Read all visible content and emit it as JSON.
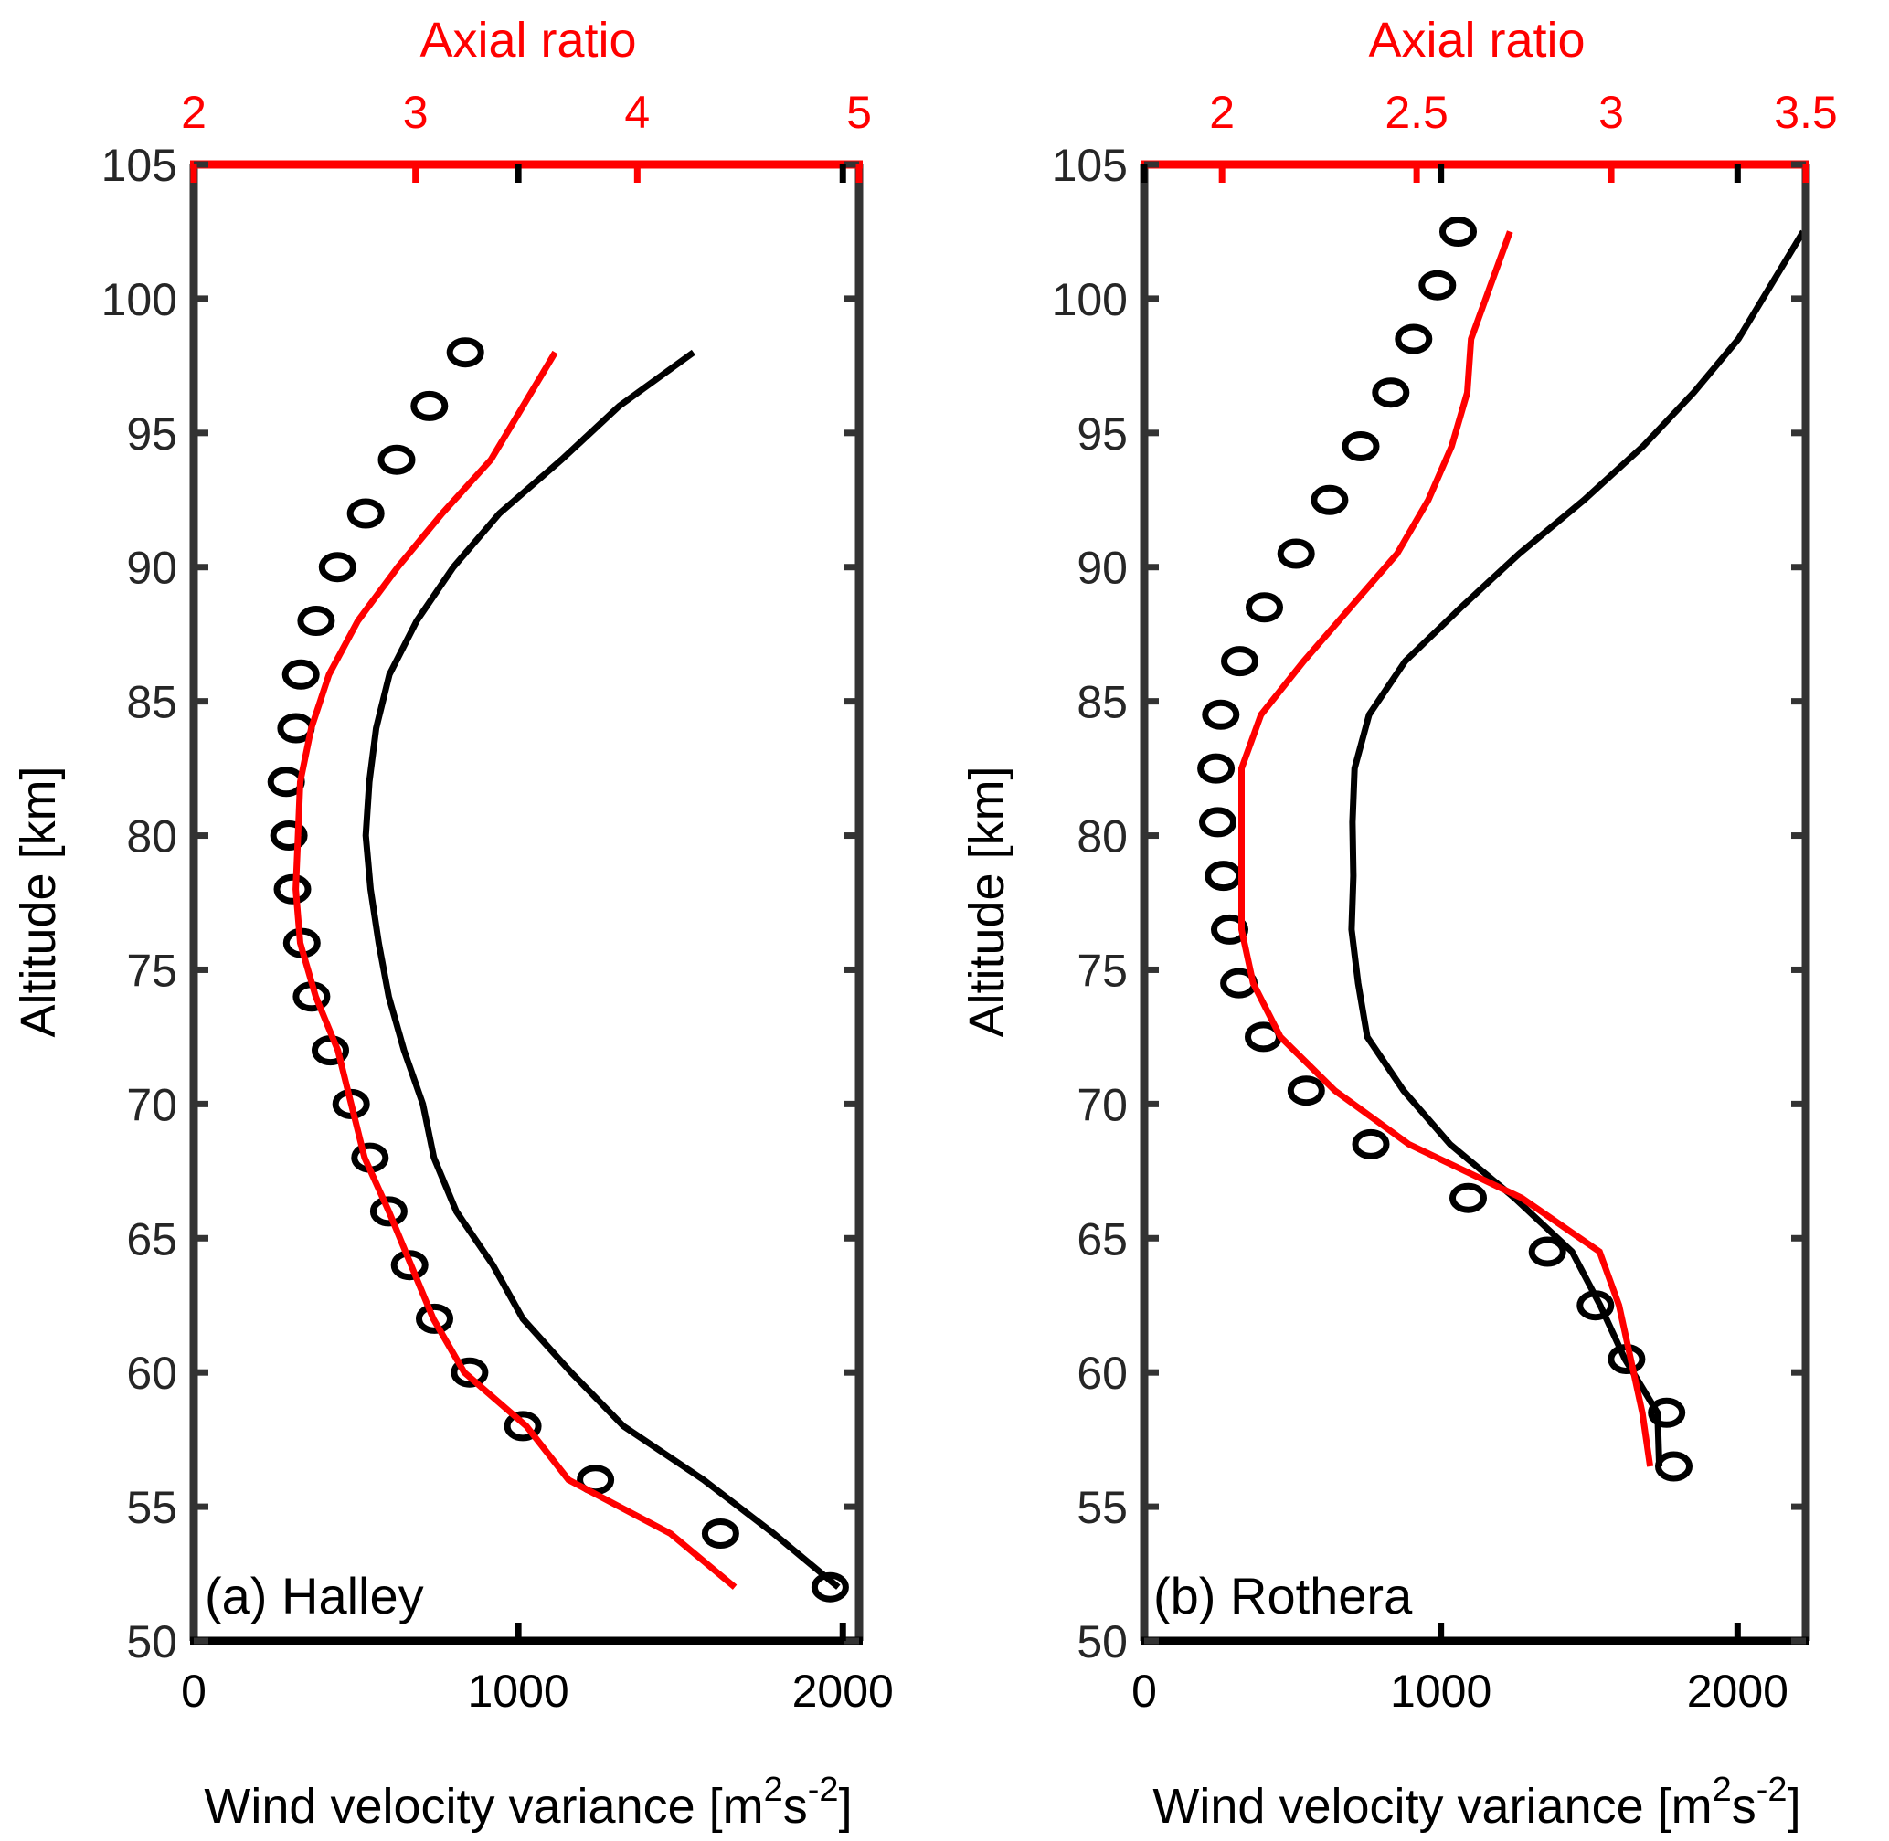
{
  "chart_data": [
    {
      "type": "line",
      "panel_label": "(a) Halley",
      "title": "",
      "xlabel": "Wind velocity variance [m",
      "xlabel_sup1": "2",
      "xlabel_mid": "s",
      "xlabel_sup2": "-2",
      "xlabel_end": "]",
      "ylabel": "Altitude [km]",
      "x2label": "Axial ratio",
      "xlim": [
        0,
        2050
      ],
      "x2lim": [
        2,
        5
      ],
      "ylim": [
        50,
        105
      ],
      "xticks": [
        0,
        1000,
        2000
      ],
      "x2ticks": [
        "2",
        "3",
        "4",
        "5"
      ],
      "x2tick_values": [
        2,
        3,
        4,
        5
      ],
      "yticks": [
        50,
        55,
        60,
        65,
        70,
        75,
        80,
        85,
        90,
        95,
        100,
        105
      ],
      "grid": false,
      "series": [
        {
          "name": "variance (circles)",
          "style": "circle",
          "color": "#000000",
          "axis": "bottom",
          "y": [
            98,
            96,
            94,
            92,
            90,
            88,
            86,
            84,
            82,
            80,
            78,
            76,
            74,
            72,
            70,
            68,
            66,
            64,
            62,
            60,
            58,
            56,
            54,
            52
          ],
          "x": [
            837,
            726,
            625,
            530,
            443,
            377,
            330,
            315,
            285,
            293,
            304,
            333,
            363,
            421,
            485,
            543,
            601,
            665,
            742,
            850,
            1014,
            1238,
            1623,
            1961
          ]
        },
        {
          "name": "variance (line)",
          "style": "line",
          "color": "#000000",
          "axis": "bottom",
          "y": [
            98,
            96,
            94,
            92,
            90,
            88,
            86,
            84,
            82,
            80,
            78,
            76,
            74,
            72,
            70,
            68,
            66,
            64,
            62,
            60,
            58,
            56,
            54,
            52
          ],
          "x": [
            1540,
            1311,
            1133,
            942,
            800,
            687,
            603,
            562,
            541,
            530,
            545,
            570,
            601,
            648,
            706,
            740,
            809,
            922,
            1014,
            1163,
            1324,
            1571,
            1787,
            1986
          ]
        },
        {
          "name": "axial ratio",
          "style": "line",
          "color": "#ff0000",
          "axis": "top",
          "y": [
            98,
            94,
            92,
            90,
            88,
            86,
            84,
            82,
            80,
            78,
            76,
            74,
            72,
            70,
            68,
            66,
            64,
            62,
            60,
            58,
            56,
            54,
            52
          ],
          "x": [
            3.63,
            3.34,
            3.12,
            2.92,
            2.74,
            2.61,
            2.53,
            2.48,
            2.47,
            2.46,
            2.48,
            2.55,
            2.65,
            2.71,
            2.77,
            2.88,
            2.98,
            3.08,
            3.22,
            3.5,
            3.69,
            4.15,
            4.44
          ]
        }
      ]
    },
    {
      "type": "line",
      "panel_label": "(b) Rothera",
      "title": "",
      "xlabel": "Wind velocity variance [m",
      "xlabel_sup1": "2",
      "xlabel_mid": "s",
      "xlabel_sup2": "-2",
      "xlabel_end": "]",
      "ylabel": "Altitude [km]",
      "x2label": "Axial ratio",
      "xlim": [
        0,
        2230
      ],
      "x2lim": [
        1.8,
        3.5
      ],
      "ylim": [
        50,
        105
      ],
      "xticks": [
        0,
        1000,
        2000
      ],
      "x2ticks": [
        "2",
        "2.5",
        "3",
        "3.5"
      ],
      "x2tick_values": [
        2,
        2.5,
        3,
        3.5
      ],
      "yticks": [
        50,
        55,
        60,
        65,
        70,
        75,
        80,
        85,
        90,
        95,
        100,
        105
      ],
      "grid": false,
      "series": [
        {
          "name": "variance (circles)",
          "style": "circle",
          "color": "#000000",
          "axis": "bottom",
          "y": [
            102.5,
            100.5,
            98.5,
            96.5,
            94.5,
            92.5,
            90.5,
            88.5,
            86.5,
            84.5,
            82.5,
            80.5,
            78.5,
            76.5,
            74.5,
            72.5,
            70.5,
            68.5,
            66.5,
            64.5,
            62.5,
            60.5,
            58.5,
            56.5
          ],
          "x": [
            1058,
            988,
            908,
            831,
            730,
            625,
            512,
            405,
            322,
            258,
            242,
            248,
            267,
            288,
            319,
            402,
            546,
            764,
            1092,
            1359,
            1521,
            1626,
            1761,
            1785
          ]
        },
        {
          "name": "variance (line)",
          "style": "line",
          "color": "#000000",
          "axis": "bottom",
          "y": [
            102.5,
            98.5,
            96.5,
            94.5,
            92.5,
            90.5,
            88.5,
            86.5,
            84.5,
            82.5,
            80.5,
            78.5,
            76.5,
            74.5,
            72.5,
            70.5,
            68.5,
            66.5,
            64.5,
            62.5,
            60.5,
            58.5,
            56.5
          ],
          "x": [
            2221,
            2003,
            1852,
            1681,
            1482,
            1264,
            1068,
            880,
            758,
            709,
            702,
            705,
            699,
            721,
            752,
            874,
            1031,
            1248,
            1442,
            1537,
            1620,
            1730,
            1736
          ]
        },
        {
          "name": "axial ratio",
          "style": "line",
          "color": "#ff0000",
          "axis": "top",
          "y": [
            102.5,
            100.5,
            98.5,
            96.5,
            94.5,
            92.5,
            90.5,
            88.5,
            86.5,
            84.5,
            82.5,
            80.5,
            78.5,
            76.5,
            74.5,
            72.5,
            70.5,
            68.5,
            66.5,
            64.5,
            62.5,
            60.5,
            58.5,
            56.5
          ],
          "x": [
            2.74,
            2.69,
            2.64,
            2.63,
            2.59,
            2.53,
            2.45,
            2.33,
            2.21,
            2.1,
            2.05,
            2.05,
            2.05,
            2.05,
            2.08,
            2.15,
            2.29,
            2.48,
            2.77,
            2.97,
            3.02,
            3.05,
            3.08,
            3.1
          ]
        }
      ]
    }
  ]
}
